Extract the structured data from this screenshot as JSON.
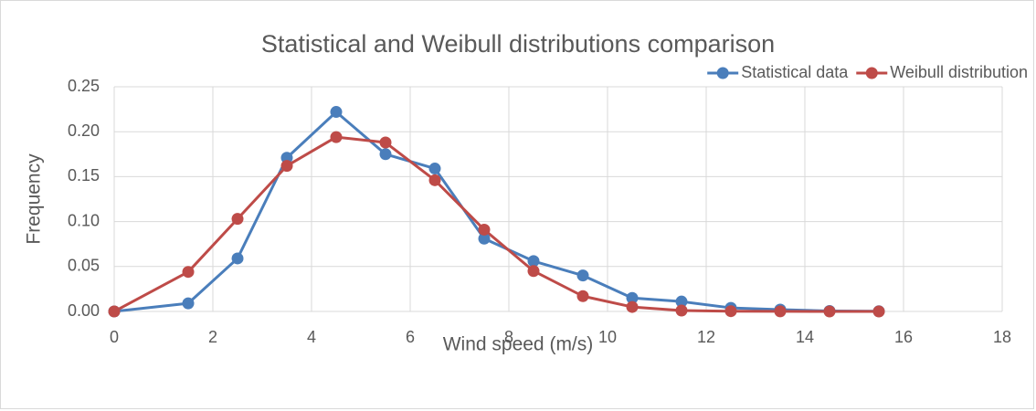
{
  "chart_data": {
    "type": "line",
    "title": "Statistical and Weibull distributions comparison",
    "xlabel": "Wind speed (m/s)",
    "ylabel": "Frequency",
    "x": [
      0,
      1.5,
      2.5,
      3.5,
      4.5,
      5.5,
      6.5,
      7.5,
      8.5,
      9.5,
      10.5,
      11.5,
      12.5,
      13.5,
      14.5,
      15.5
    ],
    "series": [
      {
        "name": "Statistical data",
        "color": "#4a7ebb",
        "values": [
          0,
          0.009,
          0.059,
          0.171,
          0.222,
          0.175,
          0.159,
          0.081,
          0.056,
          0.04,
          0.015,
          0.011,
          0.004,
          0.002,
          0.0005,
          0.0002
        ]
      },
      {
        "name": "Weibull distribution",
        "color": "#be4b48",
        "values": [
          0,
          0.044,
          0.103,
          0.162,
          0.194,
          0.188,
          0.146,
          0.091,
          0.045,
          0.017,
          0.005,
          0.001,
          0.0003,
          0.0001,
          0,
          0
        ]
      }
    ],
    "xlim": [
      0,
      18
    ],
    "xticks": [
      0,
      2,
      4,
      6,
      8,
      10,
      12,
      14,
      16,
      18
    ],
    "ylim": [
      0,
      0.25
    ],
    "yticks": [
      {
        "value": 0,
        "label": "0.00"
      },
      {
        "value": 0.05,
        "label": "0.05"
      },
      {
        "value": 0.1,
        "label": "0.10"
      },
      {
        "value": 0.15,
        "label": "0.15"
      },
      {
        "value": 0.2,
        "label": "0.20"
      },
      {
        "value": 0.25,
        "label": "0.25"
      }
    ],
    "grid": true,
    "legend": "top-right"
  }
}
